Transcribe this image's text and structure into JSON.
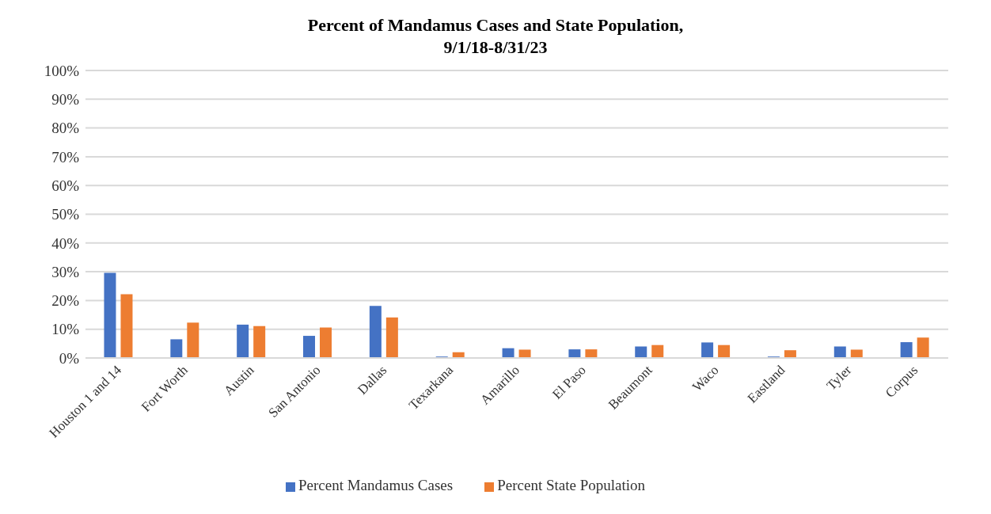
{
  "chart_data": {
    "type": "bar",
    "title": "Percent of Mandamus Cases and State Population,\n9/1/18-8/31/23",
    "categories": [
      "Houston 1 and 14",
      "Fort Worth",
      "Austin",
      "San Antonio",
      "Dallas",
      "Texarkana",
      "Amarillo",
      "El Paso",
      "Beaumont",
      "Waco",
      "Eastland",
      "Tyler",
      "Corpus"
    ],
    "series": [
      {
        "name": "Percent Mandamus Cases",
        "color": "#4472c4",
        "values": [
          29.6,
          6.5,
          11.6,
          7.7,
          18.1,
          0.5,
          3.4,
          3.0,
          4.0,
          5.4,
          0.5,
          4.0,
          5.5
        ]
      },
      {
        "name": "Percent State Population",
        "color": "#ed7d31",
        "values": [
          22.2,
          12.3,
          11.1,
          10.6,
          14.1,
          2.0,
          2.9,
          3.0,
          4.5,
          4.5,
          2.7,
          2.9,
          7.1
        ]
      }
    ],
    "ylim": [
      0,
      100
    ],
    "yticks": [
      {
        "value": 0,
        "label": "0%"
      },
      {
        "value": 10,
        "label": "10%"
      },
      {
        "value": 20,
        "label": "20%"
      },
      {
        "value": 30,
        "label": "30%"
      },
      {
        "value": 40,
        "label": "40%"
      },
      {
        "value": 50,
        "label": "50%"
      },
      {
        "value": 60,
        "label": "60%"
      },
      {
        "value": 70,
        "label": "70%"
      },
      {
        "value": 80,
        "label": "80%"
      },
      {
        "value": 90,
        "label": "90%"
      },
      {
        "value": 100,
        "label": "100%"
      }
    ],
    "grid": "y",
    "legend": "bottom"
  }
}
